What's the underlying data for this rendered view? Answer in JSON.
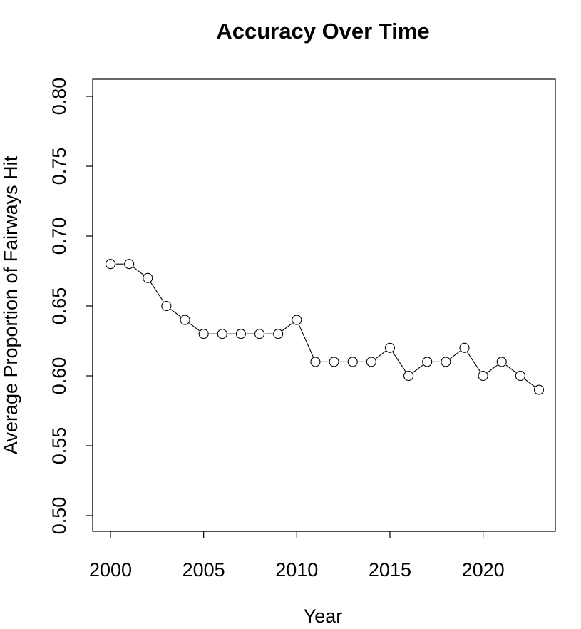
{
  "chart_data": {
    "type": "line",
    "title": "Accuracy Over Time",
    "xlabel": "Year",
    "ylabel": "Average Proportion of Fairways Hit",
    "x": [
      2000,
      2001,
      2002,
      2003,
      2004,
      2005,
      2006,
      2007,
      2008,
      2009,
      2010,
      2011,
      2012,
      2013,
      2014,
      2015,
      2016,
      2017,
      2018,
      2019,
      2020,
      2021,
      2022,
      2023
    ],
    "series": [
      {
        "values": [
          0.68,
          0.68,
          0.67,
          0.65,
          0.64,
          0.63,
          0.63,
          0.63,
          0.63,
          0.63,
          0.64,
          0.61,
          0.61,
          0.61,
          0.61,
          0.62,
          0.6,
          0.61,
          0.61,
          0.62,
          0.6,
          0.61,
          0.6,
          0.59
        ]
      }
    ],
    "xlim": [
      2000,
      2023
    ],
    "ylim": [
      0.5,
      0.8
    ],
    "xticks": [
      "2000",
      "2005",
      "2010",
      "2015",
      "2020"
    ],
    "yticks": [
      "0.50",
      "0.55",
      "0.60",
      "0.65",
      "0.70",
      "0.75",
      "0.80"
    ],
    "grid": false,
    "marker": "open-circle",
    "line_color": "#000000"
  }
}
